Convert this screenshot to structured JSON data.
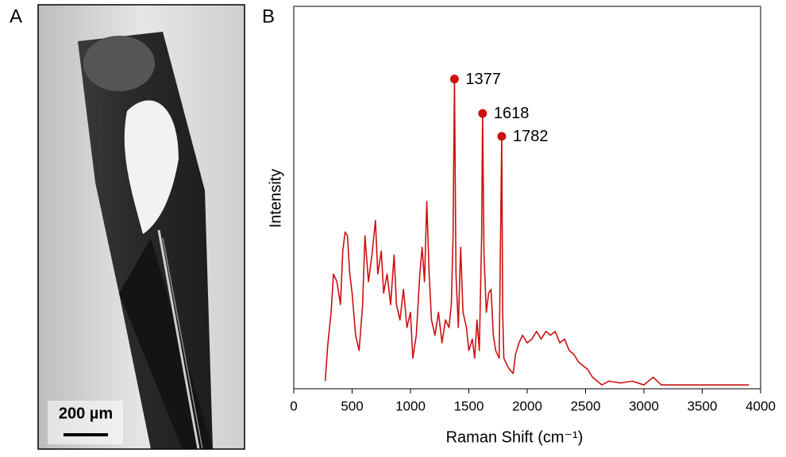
{
  "figure": {
    "panel_a": "A",
    "panel_b": "B",
    "scale_bar": "200 µm"
  },
  "chart_data": {
    "type": "line",
    "xlabel": "Raman Shift (cm⁻¹)",
    "ylabel": "Intensity",
    "color": "#cc1111",
    "xlim": [
      0,
      4000
    ],
    "xticks": [
      0,
      500,
      1000,
      1500,
      2000,
      2500,
      3000,
      3500,
      4000
    ],
    "ylim": [
      0,
      100
    ],
    "x": [
      270,
      290,
      320,
      340,
      370,
      400,
      420,
      440,
      460,
      480,
      500,
      530,
      560,
      590,
      610,
      640,
      670,
      700,
      720,
      750,
      770,
      800,
      830,
      860,
      880,
      910,
      940,
      970,
      1000,
      1020,
      1050,
      1080,
      1100,
      1120,
      1140,
      1160,
      1180,
      1210,
      1240,
      1270,
      1300,
      1330,
      1350,
      1365,
      1377,
      1390,
      1410,
      1430,
      1450,
      1480,
      1500,
      1530,
      1550,
      1570,
      1590,
      1610,
      1618,
      1630,
      1650,
      1670,
      1690,
      1710,
      1730,
      1760,
      1782,
      1790,
      1800,
      1830,
      1850,
      1880,
      1900,
      1930,
      1960,
      2000,
      2040,
      2080,
      2120,
      2160,
      2200,
      2240,
      2280,
      2320,
      2360,
      2400,
      2440,
      2480,
      2520,
      2560,
      2600,
      2640,
      2700,
      2800,
      2900,
      3000,
      3080,
      3150,
      3300,
      3500,
      3700,
      3900
    ],
    "values": [
      2,
      11,
      20,
      30,
      28,
      22,
      36,
      41,
      40,
      30,
      25,
      14,
      10,
      22,
      40,
      28,
      35,
      44,
      30,
      36,
      25,
      30,
      22,
      35,
      22,
      18,
      26,
      16,
      20,
      8,
      14,
      30,
      37,
      28,
      49,
      30,
      18,
      14,
      20,
      12,
      18,
      16,
      22,
      40,
      81,
      30,
      16,
      37,
      20,
      16,
      10,
      13,
      8,
      18,
      10,
      40,
      72,
      35,
      20,
      25,
      26,
      14,
      10,
      8,
      66,
      20,
      8,
      6,
      5,
      4,
      9,
      12,
      14,
      12,
      13,
      15,
      13,
      15,
      14,
      15,
      12,
      13,
      10,
      9,
      7,
      6,
      5,
      3,
      2,
      1,
      2,
      1.5,
      2,
      1,
      3,
      1,
      1,
      1,
      1,
      1
    ],
    "annotations": [
      {
        "x": 1377,
        "y": 81
      },
      {
        "x": 1618,
        "y": 72
      },
      {
        "x": 1782,
        "y": 66
      }
    ]
  }
}
